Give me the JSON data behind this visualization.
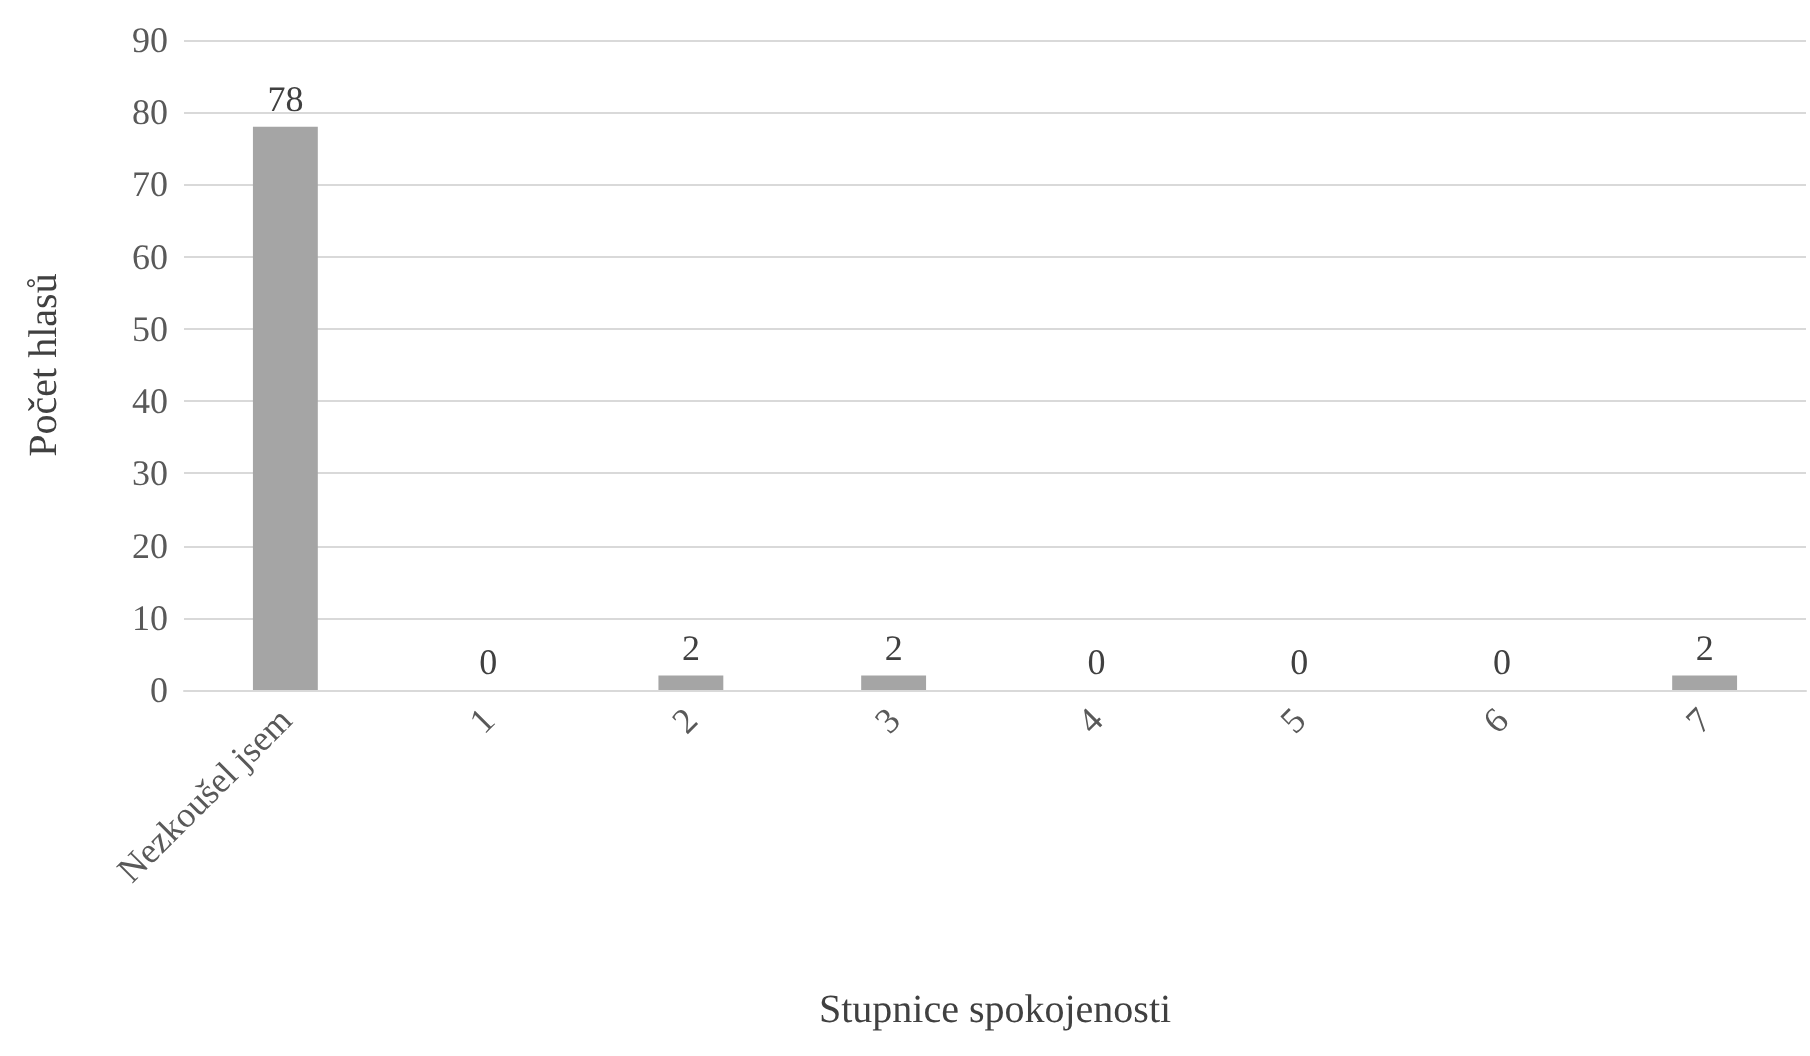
{
  "chart_data": {
    "type": "bar",
    "xlabel": "Stupnice spokojenosti",
    "ylabel": "Počet hlasů",
    "categories": [
      "Nezkoušel jsem",
      "1",
      "2",
      "3",
      "4",
      "5",
      "6",
      "7"
    ],
    "values": [
      78,
      0,
      2,
      2,
      0,
      0,
      0,
      2
    ],
    "color": "#a5a5a5",
    "ylim": [
      0,
      90
    ],
    "yticks": [
      0,
      10,
      20,
      30,
      40,
      50,
      60,
      70,
      80,
      90
    ],
    "grid": "y",
    "data_labels": true
  }
}
